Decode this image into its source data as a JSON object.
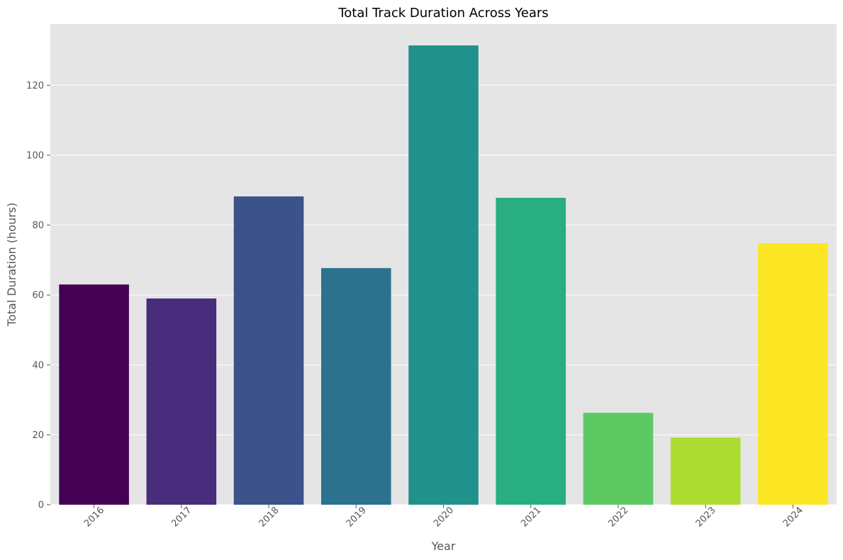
{
  "chart_data": {
    "type": "bar",
    "title": "Total Track Duration Across Years",
    "xlabel": "Year",
    "ylabel": "Total Duration (hours)",
    "categories": [
      "2016",
      "2017",
      "2018",
      "2019",
      "2020",
      "2021",
      "2022",
      "2023",
      "2024"
    ],
    "values": [
      63.0,
      59.0,
      88.2,
      67.7,
      131.4,
      87.8,
      26.3,
      19.2,
      74.8
    ],
    "colors": [
      "#440154",
      "#472d7b",
      "#3b528b",
      "#2c728e",
      "#21918c",
      "#28ae80",
      "#5ec962",
      "#addc30",
      "#fde725"
    ],
    "ylim": [
      0,
      137.5
    ],
    "yticks": [
      0,
      20,
      40,
      60,
      80,
      100,
      120
    ],
    "grid": true,
    "legend": "none",
    "x_tick_rotation_deg": 45,
    "plot_background": "#e5e5e5",
    "grid_color": "#ffffff"
  }
}
